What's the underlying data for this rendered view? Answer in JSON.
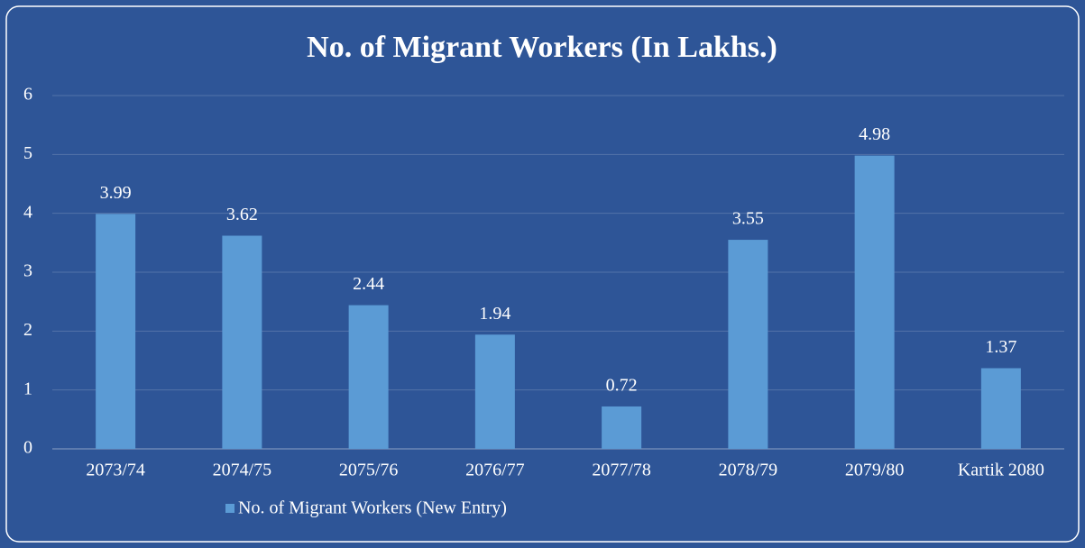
{
  "chart_data": {
    "type": "bar",
    "title": "No. of Migrant Workers (In Lakhs.)",
    "categories": [
      "2073/74",
      "2074/75",
      "2075/76",
      "2076/77",
      "2077/78",
      "2078/79",
      "2079/80",
      "Kartik 2080"
    ],
    "series": [
      {
        "name": "No. of Migrant Workers (New Entry)",
        "color": "#5b9bd5",
        "values": [
          3.99,
          3.62,
          2.44,
          1.94,
          0.72,
          3.55,
          4.98,
          1.37
        ]
      }
    ],
    "ylim": [
      0,
      6
    ],
    "yticks": [
      0,
      1,
      2,
      3,
      4,
      5,
      6
    ],
    "grid": true,
    "legend": "bottom"
  }
}
